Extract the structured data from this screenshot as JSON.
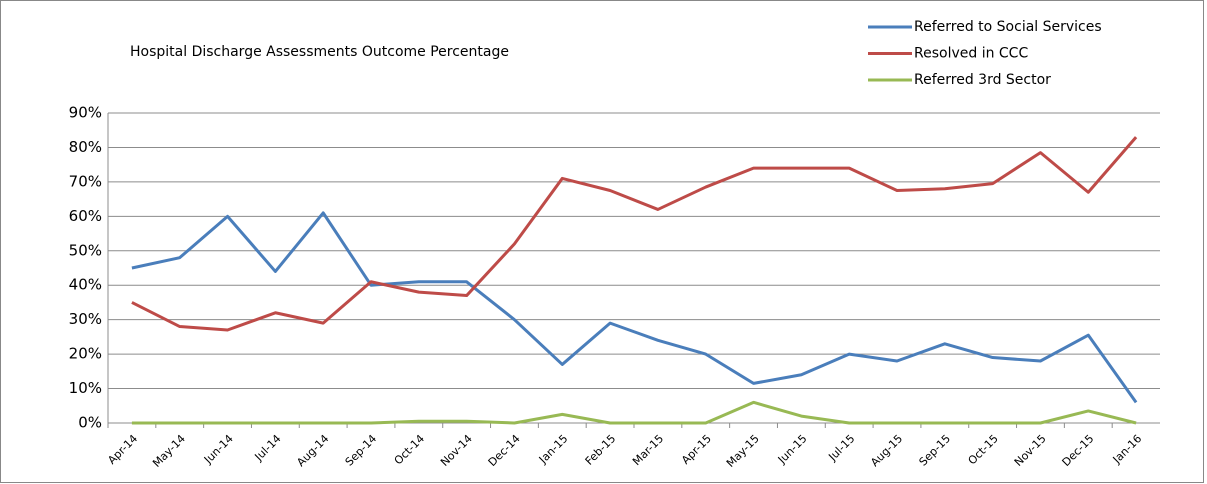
{
  "chart_data": {
    "type": "line",
    "title": "Hospital Discharge Assessments Outcome Percentage",
    "categories": [
      "Apr-14",
      "May-14",
      "Jun-14",
      "Jul-14",
      "Aug-14",
      "Sep-14",
      "Oct-14",
      "Nov-14",
      "Dec-14",
      "Jan-15",
      "Feb-15",
      "Mar-15",
      "Apr-15",
      "May-15",
      "Jun-15",
      "Jul-15",
      "Aug-15",
      "Sep-15",
      "Oct-15",
      "Nov-15",
      "Dec-15",
      "Jan-16"
    ],
    "series": [
      {
        "name": "Referred to Social Services",
        "color": "#4a7ebb",
        "values": [
          45,
          48,
          60,
          44,
          61,
          40,
          41,
          41,
          30,
          17,
          29,
          24,
          20,
          11.5,
          14,
          20,
          18,
          23,
          19,
          18,
          25.5,
          6
        ]
      },
      {
        "name": "Resolved in CCC",
        "color": "#be4b48",
        "values": [
          35,
          28,
          27,
          32,
          29,
          41,
          38,
          37,
          52,
          71,
          67.5,
          62,
          68.5,
          74,
          74,
          74,
          67.5,
          68,
          69.5,
          78.5,
          67,
          83
        ]
      },
      {
        "name": "Referred 3rd Sector",
        "color": "#98b954",
        "values": [
          0,
          0,
          0,
          0,
          0,
          0,
          0.5,
          0.5,
          0,
          2.5,
          0,
          0,
          0,
          6,
          2,
          0,
          0,
          0,
          0,
          0,
          3.5,
          0
        ]
      }
    ],
    "ylim": [
      0,
      90
    ],
    "yticks": [
      {
        "value": 0,
        "label": "0%"
      },
      {
        "value": 10,
        "label": "10%"
      },
      {
        "value": 20,
        "label": "20%"
      },
      {
        "value": 30,
        "label": "30%"
      },
      {
        "value": 40,
        "label": "40%"
      },
      {
        "value": 50,
        "label": "50%"
      },
      {
        "value": 60,
        "label": "60%"
      },
      {
        "value": 70,
        "label": "70%"
      },
      {
        "value": 80,
        "label": "80%"
      },
      {
        "value": 90,
        "label": "90%"
      }
    ],
    "grid": true,
    "legend": "top-right"
  }
}
